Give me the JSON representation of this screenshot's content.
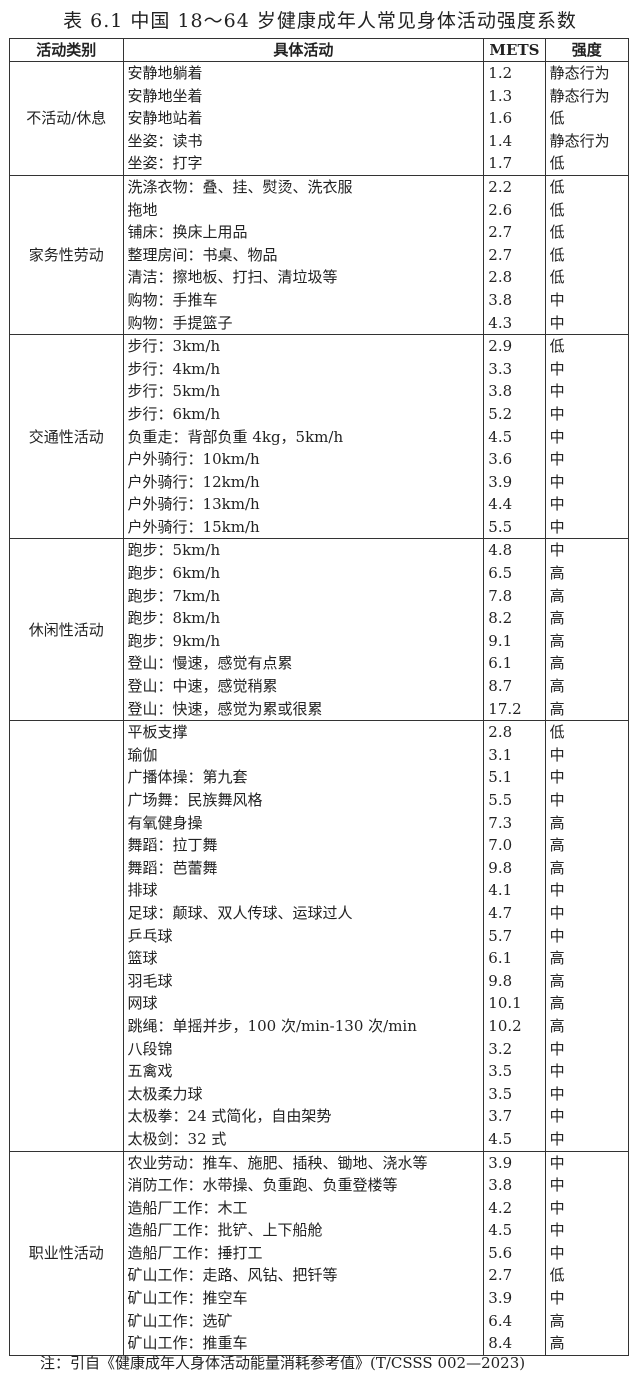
{
  "title": "表 6.1 中国 18～64 岁健康成年人常见身体活动强度系数",
  "headers": [
    "活动类别",
    "具体活动",
    "METS",
    "强度"
  ],
  "groups": [
    {
      "category": "不活动/休息",
      "rows": [
        [
          "安静地躺着",
          "1.2",
          "静态行为"
        ],
        [
          "安静地坐着",
          "1.3",
          "静态行为"
        ],
        [
          "安静地站着",
          "1.6",
          "低"
        ],
        [
          "坐姿：读书",
          "1.4",
          "静态行为"
        ],
        [
          "坐姿：打字",
          "1.7",
          "低"
        ]
      ]
    },
    {
      "category": "家务性劳动",
      "rows": [
        [
          "洗涤衣物：叠、挂、熨烫、洗衣服",
          "2.2",
          "低"
        ],
        [
          "拖地",
          "2.6",
          "低"
        ],
        [
          "铺床：换床上用品",
          "2.7",
          "低"
        ],
        [
          "整理房间：书桌、物品",
          "2.7",
          "低"
        ],
        [
          "清洁：擦地板、打扫、清垃圾等",
          "2.8",
          "低"
        ],
        [
          "购物：手推车",
          "3.8",
          "中"
        ],
        [
          "购物：手提篮子",
          "4.3",
          "中"
        ]
      ]
    },
    {
      "category": "交通性活动",
      "rows": [
        [
          "步行：3km/h",
          "2.9",
          "低"
        ],
        [
          "步行：4km/h",
          "3.3",
          "中"
        ],
        [
          "步行：5km/h",
          "3.8",
          "中"
        ],
        [
          "步行：6km/h",
          "5.2",
          "中"
        ],
        [
          "负重走：背部负重 4kg，5km/h",
          "4.5",
          "中"
        ],
        [
          "户外骑行：10km/h",
          "3.6",
          "中"
        ],
        [
          "户外骑行：12km/h",
          "3.9",
          "中"
        ],
        [
          "户外骑行：13km/h",
          "4.4",
          "中"
        ],
        [
          "户外骑行：15km/h",
          "5.5",
          "中"
        ]
      ]
    },
    {
      "category": "休闲性活动",
      "rows": [
        [
          "跑步：5km/h",
          "4.8",
          "中"
        ],
        [
          "跑步：6km/h",
          "6.5",
          "高"
        ],
        [
          "跑步：7km/h",
          "7.8",
          "高"
        ],
        [
          "跑步：8km/h",
          "8.2",
          "高"
        ],
        [
          "跑步：9km/h",
          "9.1",
          "高"
        ],
        [
          "登山：慢速，感觉有点累",
          "6.1",
          "高"
        ],
        [
          "登山：中速，感觉稍累",
          "8.7",
          "高"
        ],
        [
          "登山：快速，感觉为累或很累",
          "17.2",
          "高"
        ]
      ]
    },
    {
      "category": "",
      "rows": [
        [
          "平板支撑",
          "2.8",
          "低"
        ],
        [
          "瑜伽",
          "3.1",
          "中"
        ],
        [
          "广播体操：第九套",
          "5.1",
          "中"
        ],
        [
          "广场舞：民族舞风格",
          "5.5",
          "中"
        ],
        [
          "有氧健身操",
          "7.3",
          "高"
        ],
        [
          "舞蹈：拉丁舞",
          "7.0",
          "高"
        ],
        [
          "舞蹈：芭蕾舞",
          "9.8",
          "高"
        ],
        [
          "排球",
          "4.1",
          "中"
        ],
        [
          "足球：颠球、双人传球、运球过人",
          "4.7",
          "中"
        ],
        [
          "乒乓球",
          "5.7",
          "中"
        ],
        [
          "篮球",
          "6.1",
          "高"
        ],
        [
          "羽毛球",
          "9.8",
          "高"
        ],
        [
          "网球",
          "10.1",
          "高"
        ],
        [
          "跳绳：单摇并步，100 次/min-130 次/min",
          "10.2",
          "高"
        ],
        [
          "八段锦",
          "3.2",
          "中"
        ],
        [
          "五禽戏",
          "3.5",
          "中"
        ],
        [
          "太极柔力球",
          "3.5",
          "中"
        ],
        [
          "太极拳：24 式简化，自由架势",
          "3.7",
          "中"
        ],
        [
          "太极剑：32 式",
          "4.5",
          "中"
        ]
      ]
    },
    {
      "category": "职业性活动",
      "rows": [
        [
          "农业劳动：推车、施肥、插秧、锄地、浇水等",
          "3.9",
          "中"
        ],
        [
          "消防工作：水带操、负重跑、负重登楼等",
          "3.8",
          "中"
        ],
        [
          "造船厂工作：木工",
          "4.2",
          "中"
        ],
        [
          "造船厂工作：批铲、上下船舱",
          "4.5",
          "中"
        ],
        [
          "造船厂工作：捶打工",
          "5.6",
          "中"
        ],
        [
          "矿山工作：走路、风钻、把钎等",
          "2.7",
          "低"
        ],
        [
          "矿山工作：推空车",
          "3.9",
          "中"
        ],
        [
          "矿山工作：选矿",
          "6.4",
          "高"
        ],
        [
          "矿山工作：推重车",
          "8.4",
          "高"
        ]
      ]
    }
  ],
  "note": "注：引自《健康成年人身体活动能量消耗参考值》(T/CSSS 002—2023)"
}
